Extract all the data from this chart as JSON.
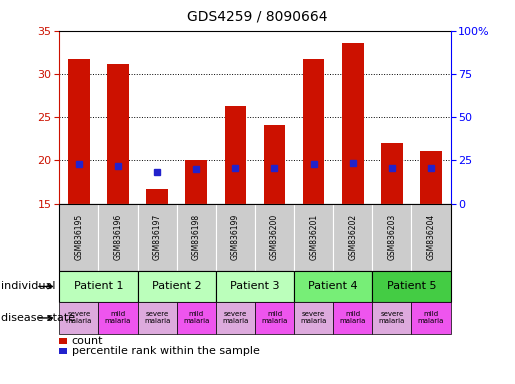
{
  "title": "GDS4259 / 8090664",
  "samples": [
    "GSM836195",
    "GSM836196",
    "GSM836197",
    "GSM836198",
    "GSM836199",
    "GSM836200",
    "GSM836201",
    "GSM836202",
    "GSM836203",
    "GSM836204"
  ],
  "counts": [
    31.7,
    31.1,
    16.7,
    20.0,
    26.3,
    24.1,
    31.7,
    33.6,
    22.0,
    21.1
  ],
  "percentiles": [
    23.0,
    21.6,
    18.5,
    19.9,
    20.4,
    20.6,
    23.1,
    23.2,
    20.5,
    20.7
  ],
  "bar_color": "#cc1100",
  "dot_color": "#2222cc",
  "ylim_left": [
    15,
    35
  ],
  "ylim_right": [
    0,
    100
  ],
  "yticks_left": [
    15,
    20,
    25,
    30,
    35
  ],
  "yticks_right": [
    0,
    25,
    50,
    75,
    100
  ],
  "ytick_labels_right": [
    "0",
    "25",
    "50",
    "75",
    "100%"
  ],
  "patients": [
    {
      "label": "Patient 1",
      "cols": [
        0,
        1
      ],
      "color": "#bbffbb"
    },
    {
      "label": "Patient 2",
      "cols": [
        2,
        3
      ],
      "color": "#bbffbb"
    },
    {
      "label": "Patient 3",
      "cols": [
        4,
        5
      ],
      "color": "#bbffbb"
    },
    {
      "label": "Patient 4",
      "cols": [
        6,
        7
      ],
      "color": "#77ee77"
    },
    {
      "label": "Patient 5",
      "cols": [
        8,
        9
      ],
      "color": "#44cc44"
    }
  ],
  "disease_states": [
    {
      "label": "severe\nmalaria",
      "col": 0,
      "color": "#ddaadd"
    },
    {
      "label": "mild\nmalaria",
      "col": 1,
      "color": "#ee55ee"
    },
    {
      "label": "severe\nmalaria",
      "col": 2,
      "color": "#ddaadd"
    },
    {
      "label": "mild\nmalaria",
      "col": 3,
      "color": "#ee55ee"
    },
    {
      "label": "severe\nmalaria",
      "col": 4,
      "color": "#ddaadd"
    },
    {
      "label": "mild\nmalaria",
      "col": 5,
      "color": "#ee55ee"
    },
    {
      "label": "severe\nmalaria",
      "col": 6,
      "color": "#ddaadd"
    },
    {
      "label": "mild\nmalaria",
      "col": 7,
      "color": "#ee55ee"
    },
    {
      "label": "severe\nmalaria",
      "col": 8,
      "color": "#ddaadd"
    },
    {
      "label": "mild\nmalaria",
      "col": 9,
      "color": "#ee55ee"
    }
  ],
  "bar_width": 0.55,
  "background_color": "#ffffff",
  "row_label_individual": "individual",
  "row_label_disease": "disease state",
  "legend_count": "count",
  "legend_percentile": "percentile rank within the sample",
  "sample_bg_color": "#cccccc",
  "chart_bg_color": "#ffffff",
  "chart_border_color": "#000000"
}
